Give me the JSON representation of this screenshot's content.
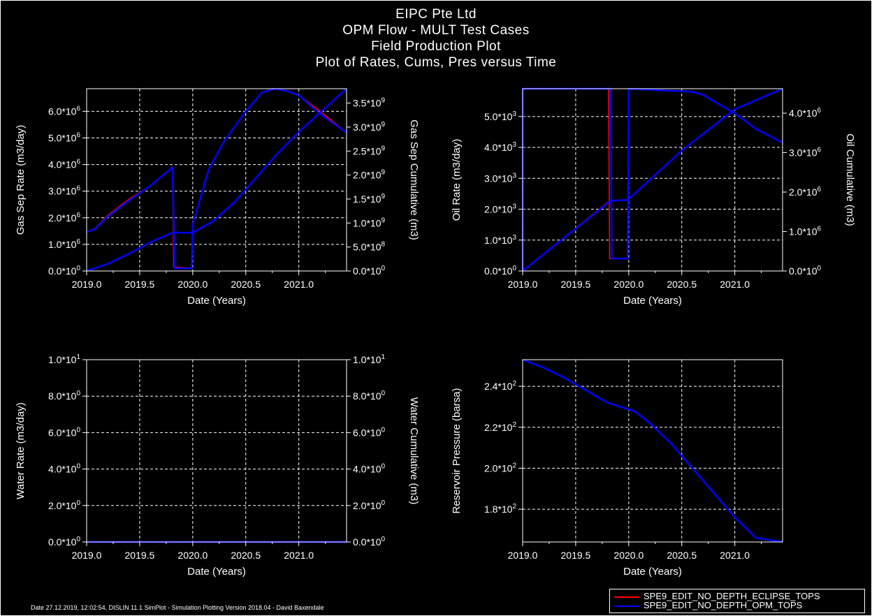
{
  "header": {
    "line1": "EIPC Pte Ltd",
    "line2": "OPM Flow - MULT Test Cases",
    "line3": "Field Production Plot",
    "line4": "Plot of Rates, Cums, Pres versus Time"
  },
  "footer": "Date 27.12.2019, 12:02:54, DISLIN 11.1 SimPlot - Simulation Plotting Version 2018.04 - David Baxendale",
  "legend": {
    "items": [
      {
        "label": "SPE9_EDIT_NO_DEPTH_ECLIPSE_TOPS",
        "color": "#ff0000"
      },
      {
        "label": "SPE9_EDIT_NO_DEPTH_OPM_TOPS",
        "color": "#0000ff"
      }
    ]
  },
  "colors": {
    "series_a": "#ff0000",
    "series_b": "#0000ff",
    "grid": "#ffffff",
    "background": "#000000"
  },
  "chart_data": [
    {
      "type": "line",
      "xlabel": "Date (Years)",
      "ylabel": "Gas Sep Rate (m3/day)",
      "y2label": "Gas Sep Cumulative (m3)",
      "xlim": [
        2019.0,
        2021.45
      ],
      "ylim": [
        0,
        6850000.0
      ],
      "y2lim": [
        0,
        3800000000.0
      ],
      "xticks": [
        "2019.0",
        "2019.5",
        "2020.0",
        "2020.5",
        "2021.0"
      ],
      "yticks": [
        "0.0*10^0",
        "1.0*10^6",
        "2.0*10^6",
        "3.0*10^6",
        "4.0*10^6",
        "5.0*10^6",
        "6.0*10^6"
      ],
      "y2ticks": [
        "0.0*10^0",
        "5.0*10^8",
        "1.0*10^9",
        "1.5*10^9",
        "2.0*10^9",
        "2.5*10^9",
        "3.0*10^9",
        "3.5*10^9"
      ],
      "grid": true,
      "series": [
        {
          "axis": "y",
          "color": "#ff0000",
          "x": [
            2019.0,
            2019.01,
            2019.08,
            2019.2,
            2019.4,
            2019.6,
            2019.81,
            2019.82,
            2019.99,
            2020.0,
            2020.15,
            2020.3,
            2020.5,
            2020.65,
            2020.75,
            2020.85,
            2021.0,
            2021.2,
            2021.45
          ],
          "y": [
            1450000.0,
            1480000.0,
            1600000.0,
            2100000.0,
            2700000.0,
            3200000.0,
            3900000.0,
            150000.0,
            100000.0,
            1800000.0,
            3800000.0,
            4900000.0,
            6000000.0,
            6700000.0,
            6850000.0,
            6800000.0,
            6600000.0,
            6000000.0,
            5200000.0
          ]
        },
        {
          "axis": "y",
          "color": "#0000ff",
          "x": [
            2019.0,
            2019.01,
            2019.08,
            2019.2,
            2019.4,
            2019.6,
            2019.81,
            2019.83,
            2019.99,
            2020.0,
            2020.15,
            2020.3,
            2020.5,
            2020.65,
            2020.77,
            2020.9,
            2021.0,
            2021.2,
            2021.45
          ],
          "y": [
            1450000.0,
            1480000.0,
            1580000.0,
            2050000.0,
            2650000.0,
            3200000.0,
            3900000.0,
            100000.0,
            100000.0,
            1750000.0,
            3800000.0,
            4900000.0,
            6000000.0,
            6700000.0,
            6850000.0,
            6750000.0,
            6600000.0,
            5900000.0,
            5200000.0
          ]
        },
        {
          "axis": "y2",
          "color": "#ff0000",
          "x": [
            2019.0,
            2019.2,
            2019.4,
            2019.6,
            2019.81,
            2019.83,
            2020.0,
            2020.2,
            2020.4,
            2020.6,
            2020.8,
            2021.0,
            2021.2,
            2021.45
          ],
          "y": [
            0,
            150000000.0,
            360000000.0,
            600000000.0,
            800000000.0,
            800000000.0,
            800000000.0,
            1050000000.0,
            1450000000.0,
            1950000000.0,
            2450000000.0,
            2900000000.0,
            3300000000.0,
            3800000000.0
          ]
        },
        {
          "axis": "y2",
          "color": "#0000ff",
          "x": [
            2019.0,
            2019.2,
            2019.4,
            2019.6,
            2019.81,
            2019.83,
            2020.0,
            2020.2,
            2020.4,
            2020.6,
            2020.8,
            2021.0,
            2021.2,
            2021.45
          ],
          "y": [
            0,
            150000000.0,
            360000000.0,
            600000000.0,
            800000000.0,
            800000000.0,
            800000000.0,
            1050000000.0,
            1450000000.0,
            1950000000.0,
            2450000000.0,
            2900000000.0,
            3300000000.0,
            3800000000.0
          ]
        }
      ]
    },
    {
      "type": "line",
      "xlabel": "Date (Years)",
      "ylabel": "Oil Rate (m3/day)",
      "y2label": "Oil Cumulative (m3)",
      "xlim": [
        2019.0,
        2021.45
      ],
      "ylim": [
        0,
        5900.0
      ],
      "y2lim": [
        0,
        4620000.0
      ],
      "xticks": [
        "2019.0",
        "2019.5",
        "2020.0",
        "2020.5",
        "2021.0"
      ],
      "yticks": [
        "0.0*10^0",
        "1.0*10^3",
        "2.0*10^3",
        "3.0*10^3",
        "4.0*10^3",
        "5.0*10^3"
      ],
      "y2ticks": [
        "0.0*10^0",
        "1.0*10^6",
        "2.0*10^6",
        "3.0*10^6",
        "4.0*10^6"
      ],
      "grid": true,
      "series": [
        {
          "axis": "y",
          "color": "#ff0000",
          "x": [
            2019.0,
            2019.001,
            2019.81,
            2019.82,
            2019.99,
            2020.0,
            2020.3,
            2020.6,
            2020.7,
            2020.85,
            2021.0,
            2021.2,
            2021.45
          ],
          "y": [
            0,
            5900.0,
            5900.0,
            400.0,
            400.0,
            5900.0,
            5850.0,
            5800.0,
            5700.0,
            5400.0,
            5100.0,
            4600.0,
            4150.0
          ]
        },
        {
          "axis": "y",
          "color": "#0000ff",
          "x": [
            2019.0,
            2019.001,
            2019.83,
            2019.84,
            2019.99,
            2020.0,
            2020.3,
            2020.6,
            2020.7,
            2020.85,
            2021.0,
            2021.2,
            2021.45
          ],
          "y": [
            0,
            5900.0,
            5900.0,
            400.0,
            400.0,
            5900.0,
            5850.0,
            5800.0,
            5700.0,
            5400.0,
            5100.0,
            4600.0,
            4150.0
          ]
        },
        {
          "axis": "y2",
          "color": "#ff0000",
          "x": [
            2019.0,
            2019.82,
            2019.99,
            2020.5,
            2021.0,
            2021.45
          ],
          "y": [
            0,
            1780000.0,
            1800000.0,
            3050000.0,
            4100000.0,
            4620000.0
          ]
        },
        {
          "axis": "y2",
          "color": "#0000ff",
          "x": [
            2019.0,
            2019.83,
            2019.99,
            2020.5,
            2021.0,
            2021.45
          ],
          "y": [
            0,
            1780000.0,
            1800000.0,
            3050000.0,
            4100000.0,
            4620000.0
          ]
        }
      ]
    },
    {
      "type": "line",
      "xlabel": "Date (Years)",
      "ylabel": "Water Rate (m3/day)",
      "y2label": "Water Cumulative (m3)",
      "xlim": [
        2019.0,
        2021.45
      ],
      "ylim": [
        0,
        10
      ],
      "y2lim": [
        0,
        10
      ],
      "xticks": [
        "2019.0",
        "2019.5",
        "2020.0",
        "2020.5",
        "2021.0"
      ],
      "yticks": [
        "0.0*10^0",
        "2.0*10^0",
        "4.0*10^0",
        "6.0*10^0",
        "8.0*10^0",
        "1.0*10^1"
      ],
      "y2ticks": [
        "0.0*10^0",
        "2.0*10^0",
        "4.0*10^0",
        "6.0*10^0",
        "8.0*10^0",
        "1.0*10^1"
      ],
      "grid": true,
      "series": [
        {
          "axis": "y",
          "color": "#ff0000",
          "x": [
            2019.0,
            2021.45
          ],
          "y": [
            0,
            0
          ]
        },
        {
          "axis": "y",
          "color": "#0000ff",
          "x": [
            2019.0,
            2021.45
          ],
          "y": [
            0,
            0
          ]
        }
      ]
    },
    {
      "type": "line",
      "xlabel": "Date (Years)",
      "ylabel": "Reservoir Pressure (barsa)",
      "xlim": [
        2019.0,
        2021.45
      ],
      "ylim": [
        164,
        253
      ],
      "xticks": [
        "2019.0",
        "2019.5",
        "2020.0",
        "2020.5",
        "2021.0"
      ],
      "yticks": [
        "1.8*10^2",
        "2.0*10^2",
        "2.2*10^2",
        "2.4*10^2"
      ],
      "grid": true,
      "series": [
        {
          "axis": "y",
          "color": "#ff0000",
          "x": [
            2019.0,
            2019.2,
            2019.4,
            2019.6,
            2019.8,
            2019.95,
            2020.05,
            2020.2,
            2020.4,
            2020.6,
            2020.8,
            2021.0,
            2021.2,
            2021.45
          ],
          "y": [
            253,
            249,
            244,
            238,
            232,
            229.5,
            228,
            222,
            212,
            200,
            188,
            176,
            166,
            164
          ]
        },
        {
          "axis": "y",
          "color": "#0000ff",
          "x": [
            2019.0,
            2019.2,
            2019.4,
            2019.6,
            2019.8,
            2019.95,
            2020.05,
            2020.2,
            2020.4,
            2020.6,
            2020.8,
            2021.0,
            2021.2,
            2021.45
          ],
          "y": [
            253,
            249,
            244,
            238,
            232,
            229.5,
            228,
            222,
            212,
            200,
            188,
            176,
            166,
            164
          ]
        }
      ]
    }
  ]
}
